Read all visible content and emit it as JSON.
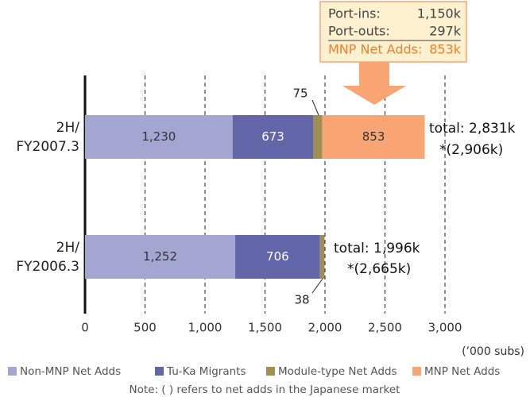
{
  "chart_data": {
    "type": "bar",
    "orientation": "horizontal",
    "stacked": true,
    "categories": [
      "2H/\nFY2007.3",
      "2H/\nFY2006.3"
    ],
    "series": [
      {
        "name": "Non-MNP Net Adds",
        "color": "#a3a6d0",
        "values": [
          1230,
          1252
        ],
        "value_labels": [
          "1,230",
          "1,252"
        ]
      },
      {
        "name": "Tu-Ka Migrants",
        "color": "#6266a8",
        "values": [
          673,
          706
        ],
        "value_labels": [
          "673",
          "706"
        ]
      },
      {
        "name": "Module-type Net Adds",
        "color": "#a08e52",
        "values": [
          75,
          38
        ],
        "value_labels": [
          "75",
          "38"
        ]
      },
      {
        "name": "MNP Net Adds",
        "color": "#f9a574",
        "values": [
          853,
          null
        ],
        "value_labels": [
          "853",
          null
        ]
      }
    ],
    "xlim": [
      0,
      3000
    ],
    "xticks": [
      0,
      500,
      {
        "value": 1000,
        "label": "1,000"
      },
      {
        "value": 1500,
        "label": "1,500"
      },
      {
        "value": 2000,
        "label": "2,000"
      },
      {
        "value": 2500,
        "label": "2,500"
      },
      {
        "value": 3000,
        "label": "3,000"
      }
    ],
    "grid": true,
    "x_unit": "(’000 subs)",
    "totals": [
      [
        "total: 2,831k",
        "*(2,906k)"
      ],
      [
        "total: 1,996k",
        "*(2,665k)"
      ]
    ],
    "callout": {
      "rows": [
        [
          "Port-ins:",
          "1,150k"
        ],
        [
          "Port-outs:",
          "297k"
        ],
        [
          "MNP Net Adds:",
          "853k"
        ]
      ]
    },
    "note": "Note: ( ) refers to net adds in the Japanese market"
  }
}
